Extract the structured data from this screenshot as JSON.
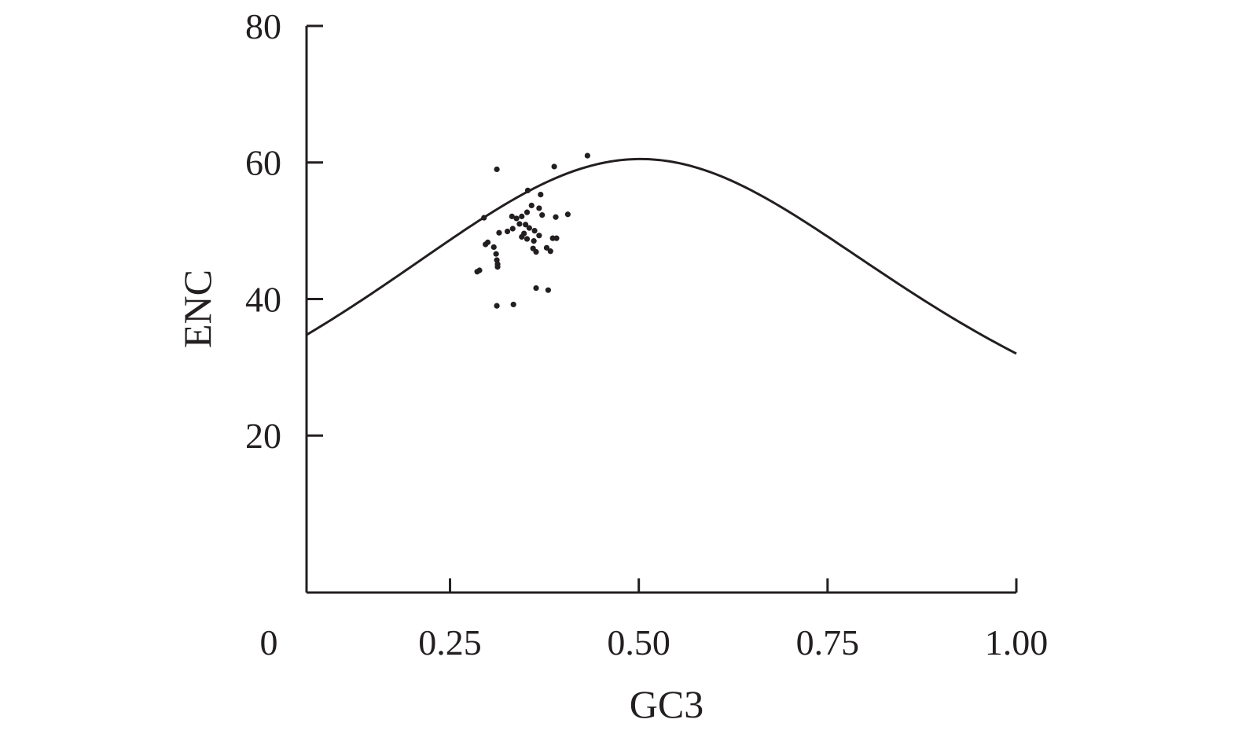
{
  "chart_data": {
    "type": "scatter",
    "title": "",
    "xlabel": "GC3",
    "ylabel": "ENC",
    "xlim": [
      0.06,
      1.0
    ],
    "ylim": [
      -3,
      80
    ],
    "origin_label": "0",
    "x_ticks": [
      {
        "value": 0.25,
        "label": "0.25"
      },
      {
        "value": 0.5,
        "label": "0.50"
      },
      {
        "value": 0.75,
        "label": "0.75"
      },
      {
        "value": 1.0,
        "label": "1.00"
      }
    ],
    "y_ticks": [
      {
        "value": 20,
        "label": "20"
      },
      {
        "value": 40,
        "label": "40"
      },
      {
        "value": 60,
        "label": "60"
      },
      {
        "value": 80,
        "label": "80"
      }
    ],
    "grid": false,
    "legend": "none",
    "series": [
      {
        "type": "scatter",
        "color": "#231f20",
        "points": [
          [
            0.432,
            61.0
          ],
          [
            0.312,
            59.0
          ],
          [
            0.388,
            59.4
          ],
          [
            0.353,
            55.9
          ],
          [
            0.37,
            55.3
          ],
          [
            0.368,
            53.3
          ],
          [
            0.358,
            53.7
          ],
          [
            0.352,
            52.7
          ],
          [
            0.345,
            52.1
          ],
          [
            0.372,
            52.3
          ],
          [
            0.332,
            52.1
          ],
          [
            0.295,
            51.9
          ],
          [
            0.338,
            51.8
          ],
          [
            0.39,
            52.0
          ],
          [
            0.406,
            52.4
          ],
          [
            0.342,
            51.0
          ],
          [
            0.35,
            50.9
          ],
          [
            0.355,
            50.4
          ],
          [
            0.362,
            50.0
          ],
          [
            0.348,
            49.6
          ],
          [
            0.345,
            49.1
          ],
          [
            0.352,
            48.8
          ],
          [
            0.333,
            50.3
          ],
          [
            0.326,
            49.9
          ],
          [
            0.315,
            49.7
          ],
          [
            0.368,
            49.3
          ],
          [
            0.386,
            48.9
          ],
          [
            0.391,
            48.9
          ],
          [
            0.361,
            48.5
          ],
          [
            0.3,
            48.3
          ],
          [
            0.297,
            48.0
          ],
          [
            0.308,
            47.6
          ],
          [
            0.36,
            47.4
          ],
          [
            0.364,
            46.9
          ],
          [
            0.378,
            47.5
          ],
          [
            0.383,
            47.0
          ],
          [
            0.311,
            46.6
          ],
          [
            0.312,
            45.7
          ],
          [
            0.313,
            45.1
          ],
          [
            0.313,
            44.7
          ],
          [
            0.289,
            44.2
          ],
          [
            0.286,
            44.0
          ],
          [
            0.364,
            41.6
          ],
          [
            0.38,
            41.3
          ],
          [
            0.312,
            39.0
          ],
          [
            0.334,
            39.2
          ]
        ]
      },
      {
        "type": "line",
        "color": "#231f20",
        "formula": "ENC = 2 + GC3 + 29 / (GC3^2 + (1 - GC3)^2)",
        "x_range": [
          0.06,
          1.0
        ]
      }
    ]
  }
}
